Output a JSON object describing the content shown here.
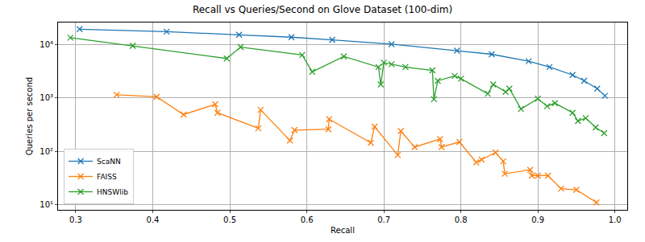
{
  "chart_data": {
    "type": "line",
    "title": "Recall vs Queries/Second on Glove Dataset (100-dim)",
    "x_label": "Recall",
    "y_label": "Queries per second",
    "log": "y",
    "grid": true,
    "legend": "lower left",
    "xlim": [
      0.277,
      1.016
    ],
    "ylim": [
      8,
      26000
    ],
    "xticks": [
      0.3,
      0.4,
      0.5,
      0.6,
      0.7,
      0.8,
      0.9,
      {
        "value": 1,
        "label": "1.0"
      }
    ],
    "yticks": [
      {
        "value": 10,
        "label": "10¹"
      },
      {
        "value": 100,
        "label": "10²"
      },
      {
        "value": 1000,
        "label": "10³"
      },
      {
        "value": 10000,
        "label": "10⁴"
      }
    ],
    "series": [
      {
        "name": "ScaNN",
        "color": "#1f77b4",
        "marker": "x",
        "line_style": "solid",
        "x": [
          0.305,
          0.418,
          0.512,
          0.58,
          0.633,
          0.71,
          0.795,
          0.84,
          0.888,
          0.915,
          0.945,
          0.96,
          0.977,
          0.987
        ],
        "values": [
          19500,
          17500,
          15300,
          13800,
          12300,
          10200,
          7700,
          6600,
          4900,
          3800,
          2700,
          2100,
          1500,
          1100
        ]
      },
      {
        "name": "FAISS",
        "color": "#ff7f0e",
        "marker": "x",
        "line_style": "solid",
        "x": [
          0.353,
          0.405,
          0.44,
          0.481,
          0.484,
          0.537,
          0.54,
          0.578,
          0.584,
          0.628,
          0.629,
          0.683,
          0.688,
          0.718,
          0.722,
          0.74,
          0.773,
          0.775,
          0.798,
          0.82,
          0.827,
          0.845,
          0.855,
          0.857,
          0.89,
          0.892,
          0.9,
          0.913,
          0.93,
          0.95,
          0.976
        ],
        "values": [
          1150,
          1050,
          490,
          760,
          530,
          270,
          600,
          160,
          250,
          260,
          400,
          145,
          290,
          85,
          240,
          120,
          170,
          120,
          150,
          62,
          70,
          95,
          65,
          38,
          45,
          35,
          35,
          35,
          20,
          19,
          11
        ]
      },
      {
        "name": "HNSWlib",
        "color": "#2ca02c",
        "marker": "x",
        "line_style": "solid",
        "x": [
          0.293,
          0.374,
          0.496,
          0.514,
          0.594,
          0.607,
          0.648,
          0.693,
          0.696,
          0.7,
          0.71,
          0.728,
          0.763,
          0.765,
          0.77,
          0.792,
          0.8,
          0.835,
          0.842,
          0.858,
          0.863,
          0.878,
          0.9,
          0.912,
          0.922,
          0.945,
          0.952,
          0.962,
          0.975,
          0.986
        ],
        "values": [
          13500,
          9500,
          5500,
          9000,
          6400,
          3100,
          6000,
          3800,
          1800,
          4600,
          4300,
          3800,
          3300,
          950,
          2100,
          2600,
          2300,
          1200,
          1800,
          1300,
          1500,
          620,
          970,
          700,
          800,
          530,
          370,
          420,
          280,
          220
        ]
      }
    ]
  }
}
